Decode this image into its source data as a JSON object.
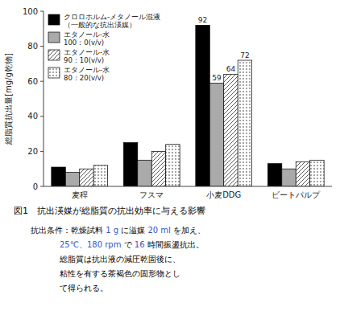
{
  "chart_data": {
    "type": "bar",
    "title": "図1　抗出渶媒が総脂質の抗出効率に与える影響",
    "categories": [
      "麦稈",
      "フスマ",
      "小麦DDG",
      "ビートパルプ"
    ],
    "series": [
      {
        "name": "クロロホルム-メタノール混液\n（一般的な抗出渶媒）",
        "color": "#000000",
        "values": [
          11,
          25,
          92,
          13
        ]
      },
      {
        "name": "エタノール-水\n100：0(v/v)",
        "color": "#aaaaaa",
        "values": [
          8,
          15,
          59,
          10
        ]
      },
      {
        "name": "エタノール-水\n90：10(v/v)",
        "color": "#ffffff",
        "values": [
          10,
          20,
          64,
          14
        ]
      },
      {
        "name": "エタノール-水\n80：20(v/v)",
        "color": "#ffffff",
        "values": [
          12,
          24,
          72,
          15
        ]
      }
    ],
    "ylabel": "総脂質抗出量[mg/g乾物]",
    "ylim": [
      0,
      100
    ],
    "yticks": [
      0,
      20,
      40,
      60,
      80,
      100
    ],
    "grid": false,
    "legend": "upper-left",
    "data_labels": "小麦DDG",
    "annotations": [
      [
        {
          "text": "抗出条件：乾燥試料 "
        },
        {
          "text": "1 g",
          "color": "#3355cc"
        },
        {
          "text": " に溢媒 "
        },
        {
          "text": "20 ml",
          "color": "#3355cc"
        },
        {
          "text": " を加え、"
        }
      ],
      [
        {
          "text": "25℃、",
          "color": "#3355cc"
        },
        {
          "text": "180 rpm",
          "color": "#3355cc"
        },
        {
          "text": " で "
        },
        {
          "text": "16",
          "color": "#3355cc"
        },
        {
          "text": " 時間振盪抗出。"
        }
      ],
      [
        {
          "text": "総脂質は抗出液の減圧乾固後に、"
        }
      ],
      [
        {
          "text": "粘性を有する茶褐色の固形物とし"
        }
      ],
      [
        {
          "text": "て得られる。"
        }
      ]
    ]
  }
}
